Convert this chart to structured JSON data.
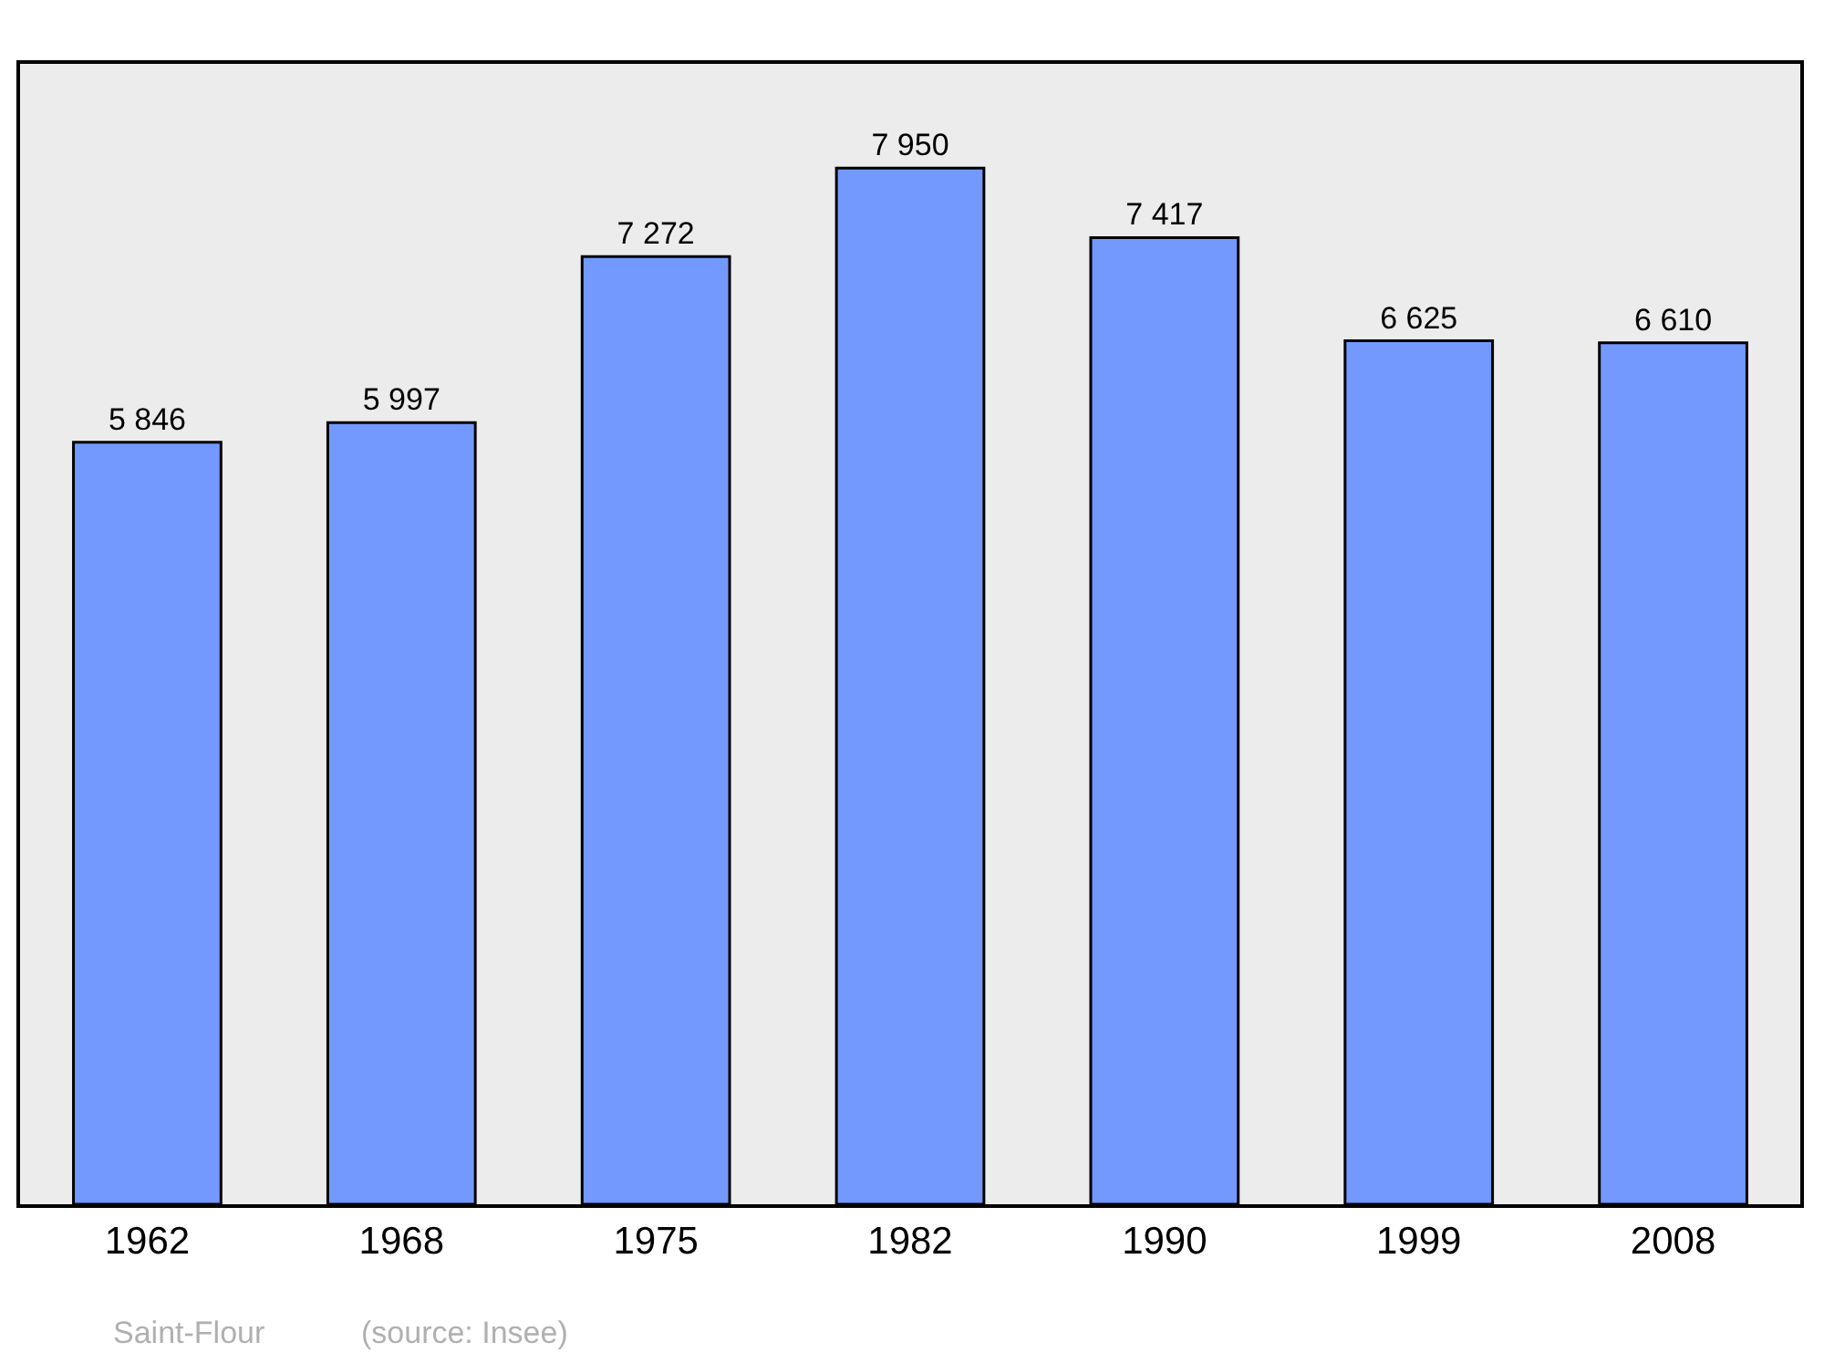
{
  "chart_data": {
    "type": "bar",
    "categories": [
      "1962",
      "1968",
      "1975",
      "1982",
      "1990",
      "1999",
      "2008"
    ],
    "values": [
      5846,
      5997,
      7272,
      7950,
      7417,
      6625,
      6610
    ],
    "value_labels": [
      "5 846",
      "5 997",
      "7 272",
      "7 950",
      "7 417",
      "6 625",
      "6 610"
    ],
    "color": "#7399ff",
    "ylim": [
      0,
      8750
    ],
    "tick_labels": "x",
    "grid": false,
    "legend": false,
    "annotations": [
      "Saint-Flour",
      "(source: Insee)"
    ]
  }
}
